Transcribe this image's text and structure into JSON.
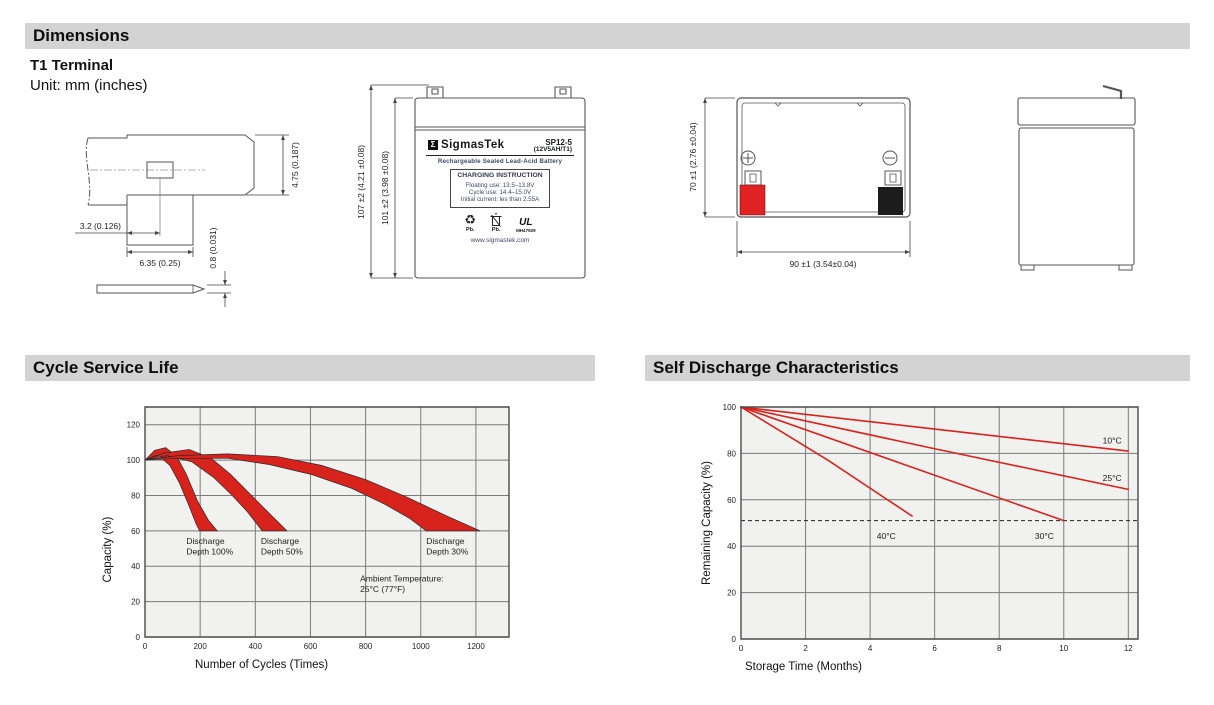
{
  "colors": {
    "accent_red": "#d8231d",
    "header_bg": "#d3d3d3",
    "plot_bg": "#f1f1ef",
    "grid": "#7b7b7b",
    "border": "#4a4a4a",
    "terminal_red": "#e02222",
    "terminal_black": "#1c1c1c"
  },
  "sections": {
    "dimensions": {
      "title": "Dimensions",
      "subtitle": "T1 Terminal",
      "unit_note": "Unit: mm (inches)"
    },
    "cycle_life": {
      "title": "Cycle Service Life"
    },
    "self_discharge": {
      "title": "Self Discharge Characteristics"
    }
  },
  "terminal_drawing": {
    "dim_height": "4.75 (0.187)",
    "dim_offset": "3.2 (0.126)",
    "dim_width": "6.35 (0.25)",
    "dim_thickness": "0.8 (0.031)"
  },
  "front_view": {
    "dim_outer": "107 ±2 (4.21 ±0.08)",
    "dim_inner": "101 ±2 (3.98 ±0.08)",
    "label": {
      "logo_letter": "Σ",
      "brand": "SigmasTek",
      "model": "SP12-5",
      "spec": "(12V5AH/T1)",
      "type": "Rechargeable Sealed Lead-Acid Battery",
      "charging_title": "CHARGING INSTRUCTION",
      "charging_lines": [
        "Floating use: 13.5–13.8V",
        "Cycle use: 14.4–15.0V",
        "Initial current: les than 2.55A"
      ],
      "pb_recycle": "Pb.",
      "pb_disposal": "Pb.",
      "ul_code": "MH47929",
      "website": "www.sigmastek.com"
    }
  },
  "top_view": {
    "dim_height": "70 ±1 (2.76 ±0.04)",
    "dim_width": "90 ±1 (3.54±0.04)"
  },
  "chart_data": [
    {
      "type": "area",
      "key": "cycle",
      "title": "Cycle Service Life",
      "xlabel": "Number of Cycles (Times)",
      "ylabel": "Capacity (%)",
      "xlim": [
        0,
        1320
      ],
      "ylim": [
        0,
        130
      ],
      "xticks": [
        0,
        200,
        400,
        600,
        800,
        1000,
        1200
      ],
      "yticks": [
        0,
        20,
        40,
        60,
        80,
        100,
        120
      ],
      "grid": true,
      "bands": [
        {
          "name": "Discharge Depth 100%",
          "upper": [
            [
              0,
              100
            ],
            [
              35,
              105.5
            ],
            [
              75,
              107
            ],
            [
              115,
              102
            ],
            [
              150,
              92
            ],
            [
              190,
              77
            ],
            [
              230,
              66
            ],
            [
              262,
              60
            ]
          ],
          "lower": [
            [
              0,
              100
            ],
            [
              45,
              103
            ],
            [
              90,
              97
            ],
            [
              125,
              87
            ],
            [
              160,
              74
            ],
            [
              185,
              64
            ],
            [
              198,
              60
            ]
          ]
        },
        {
          "name": "Discharge Depth 50%",
          "upper": [
            [
              0,
              100
            ],
            [
              70,
              104
            ],
            [
              160,
              106
            ],
            [
              240,
              101
            ],
            [
              310,
              92
            ],
            [
              380,
              81
            ],
            [
              450,
              70
            ],
            [
              515,
              60
            ]
          ],
          "lower": [
            [
              0,
              100
            ],
            [
              80,
              102.5
            ],
            [
              170,
              99
            ],
            [
              250,
              90
            ],
            [
              310,
              81
            ],
            [
              370,
              71
            ],
            [
              425,
              60
            ]
          ]
        },
        {
          "name": "Discharge Depth 30%",
          "upper": [
            [
              0,
              100
            ],
            [
              120,
              102.5
            ],
            [
              300,
              103.5
            ],
            [
              480,
              102
            ],
            [
              640,
              97
            ],
            [
              800,
              89
            ],
            [
              950,
              79
            ],
            [
              1100,
              68
            ],
            [
              1215,
              60
            ]
          ],
          "lower": [
            [
              0,
              100
            ],
            [
              120,
              101
            ],
            [
              300,
              101
            ],
            [
              450,
              97.5
            ],
            [
              600,
              92
            ],
            [
              750,
              84
            ],
            [
              870,
              75
            ],
            [
              960,
              67
            ],
            [
              1020,
              60
            ]
          ]
        }
      ],
      "annotations": [
        {
          "text": "Discharge\nDepth 100%",
          "x": 150,
          "y": 57
        },
        {
          "text": "Discharge\nDepth 50%",
          "x": 420,
          "y": 57
        },
        {
          "text": "Discharge\nDepth 30%",
          "x": 1020,
          "y": 57
        },
        {
          "text": "Ambient Temperature:\n25°C (77°F)",
          "x": 780,
          "y": 36
        }
      ]
    },
    {
      "type": "line",
      "key": "self",
      "title": "Self Discharge Characteristics",
      "xlabel": "Storage Time (Months)",
      "ylabel": "Remaining Capacity (%)",
      "xlim": [
        0,
        12.3
      ],
      "ylim": [
        0,
        100
      ],
      "xticks": [
        0,
        2,
        4,
        6,
        8,
        10,
        12
      ],
      "yticks": [
        0,
        20,
        40,
        60,
        80,
        100
      ],
      "grid": true,
      "dashed_line_y": 51,
      "series": [
        {
          "name": "10°C",
          "points": [
            [
              0,
              100
            ],
            [
              6,
              90.5
            ],
            [
              12,
              81
            ]
          ],
          "label_pos": [
            11.5,
            85.5
          ]
        },
        {
          "name": "25°C",
          "points": [
            [
              0,
              100
            ],
            [
              6,
              82
            ],
            [
              12,
              64.5
            ]
          ],
          "label_pos": [
            11.5,
            69.5
          ]
        },
        {
          "name": "30°C",
          "points": [
            [
              0,
              100
            ],
            [
              5,
              75.5
            ],
            [
              10,
              51
            ]
          ],
          "label_pos": [
            9.4,
            44.5
          ]
        },
        {
          "name": "40°C",
          "points": [
            [
              0,
              100
            ],
            [
              2.7,
              77
            ],
            [
              5.3,
              53
            ]
          ],
          "label_pos": [
            4.5,
            44.5
          ]
        }
      ]
    }
  ]
}
